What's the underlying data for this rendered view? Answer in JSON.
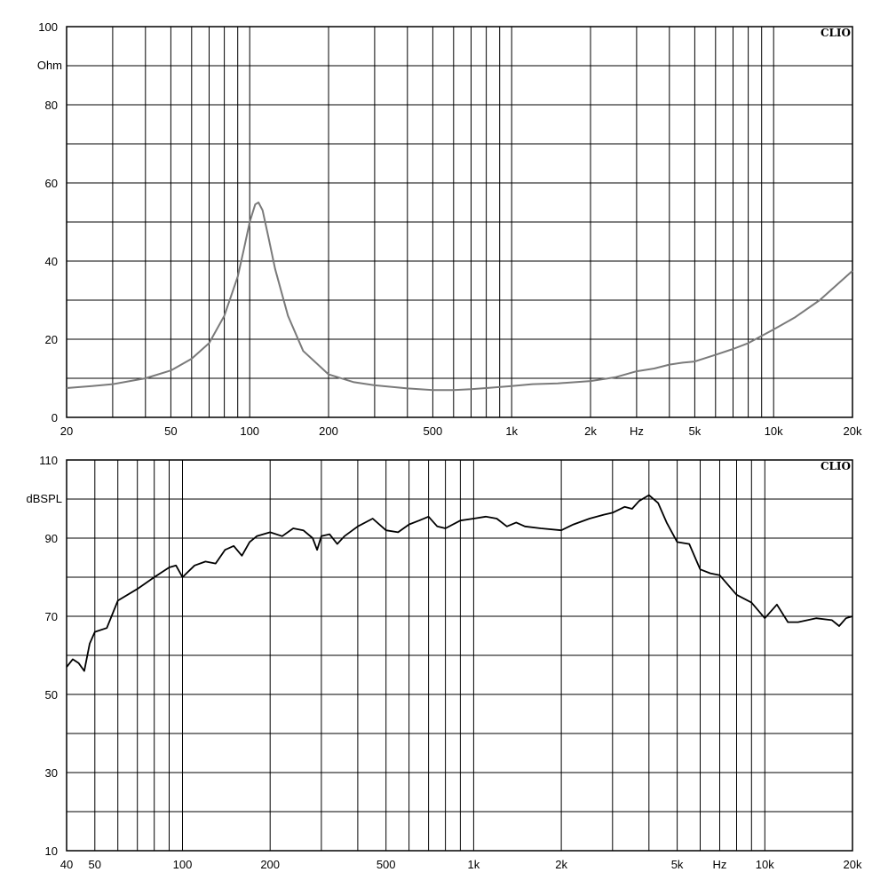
{
  "chart_data": [
    {
      "type": "line",
      "title": "",
      "brand": "CLIO",
      "xlabel": "",
      "ylabel": "Ohm",
      "x_scale": "log",
      "xlim": [
        20,
        20000
      ],
      "ylim": [
        0,
        100
      ],
      "grid": true,
      "x_ticks": [
        {
          "value": 20,
          "label": "20"
        },
        {
          "value": 50,
          "label": "50"
        },
        {
          "value": 100,
          "label": "100"
        },
        {
          "value": 200,
          "label": "200"
        },
        {
          "value": 500,
          "label": "500"
        },
        {
          "value": 1000,
          "label": "1k"
        },
        {
          "value": 2000,
          "label": "2k"
        },
        {
          "value": 3000,
          "label": "Hz"
        },
        {
          "value": 5000,
          "label": "5k"
        },
        {
          "value": 10000,
          "label": "10k"
        },
        {
          "value": 20000,
          "label": "20k"
        }
      ],
      "y_ticks": [
        {
          "value": 0,
          "label": "0"
        },
        {
          "value": 20,
          "label": "20"
        },
        {
          "value": 40,
          "label": "40"
        },
        {
          "value": 60,
          "label": "60"
        },
        {
          "value": 80,
          "label": "80"
        },
        {
          "value": 100,
          "label": "100"
        }
      ],
      "line_color": "#7a7a7a",
      "series": [
        {
          "name": "",
          "x": [
            20,
            25,
            30,
            40,
            50,
            60,
            70,
            80,
            90,
            95,
            100,
            105,
            108,
            112,
            118,
            125,
            140,
            160,
            200,
            250,
            300,
            400,
            500,
            600,
            700,
            800,
            1000,
            1200,
            1500,
            2000,
            2500,
            3000,
            3500,
            4000,
            4500,
            5000,
            6000,
            7000,
            8000,
            10000,
            12000,
            15000,
            20000
          ],
          "y": [
            7.5,
            8.0,
            8.5,
            10.0,
            12.0,
            15.0,
            19.0,
            26.0,
            36.0,
            43.0,
            50.0,
            54.5,
            55.0,
            53.0,
            46.0,
            38.0,
            26.0,
            17.0,
            11.0,
            9.0,
            8.2,
            7.4,
            7.0,
            7.0,
            7.2,
            7.5,
            8.0,
            8.5,
            8.7,
            9.3,
            10.3,
            11.8,
            12.5,
            13.5,
            14.0,
            14.3,
            16.0,
            17.5,
            19.0,
            22.5,
            25.5,
            30.0,
            37.5
          ]
        }
      ]
    },
    {
      "type": "line",
      "title": "",
      "brand": "CLIO",
      "xlabel": "",
      "ylabel": "dBSPL",
      "x_scale": "log",
      "xlim": [
        40,
        20000
      ],
      "ylim": [
        10,
        110
      ],
      "grid": true,
      "x_ticks": [
        {
          "value": 40,
          "label": "40"
        },
        {
          "value": 50,
          "label": "50"
        },
        {
          "value": 100,
          "label": "100"
        },
        {
          "value": 200,
          "label": "200"
        },
        {
          "value": 500,
          "label": "500"
        },
        {
          "value": 1000,
          "label": "1k"
        },
        {
          "value": 2000,
          "label": "2k"
        },
        {
          "value": 5000,
          "label": "5k"
        },
        {
          "value": 7000,
          "label": "Hz"
        },
        {
          "value": 10000,
          "label": "10k"
        },
        {
          "value": 20000,
          "label": "20k"
        }
      ],
      "y_ticks": [
        {
          "value": 10,
          "label": "10"
        },
        {
          "value": 30,
          "label": "30"
        },
        {
          "value": 50,
          "label": "50"
        },
        {
          "value": 70,
          "label": "70"
        },
        {
          "value": 90,
          "label": "90"
        },
        {
          "value": 110,
          "label": "110"
        }
      ],
      "line_color": "#000000",
      "series": [
        {
          "name": "",
          "x": [
            40,
            42,
            44,
            46,
            48,
            50,
            55,
            60,
            70,
            80,
            90,
            95,
            100,
            110,
            120,
            130,
            140,
            150,
            160,
            170,
            180,
            200,
            220,
            240,
            260,
            280,
            290,
            300,
            320,
            340,
            360,
            400,
            450,
            500,
            550,
            600,
            650,
            700,
            750,
            800,
            900,
            1000,
            1100,
            1200,
            1300,
            1400,
            1500,
            1700,
            2000,
            2200,
            2500,
            2800,
            3000,
            3300,
            3500,
            3700,
            4000,
            4300,
            4600,
            5000,
            5500,
            6000,
            6500,
            7000,
            8000,
            9000,
            10000,
            11000,
            12000,
            13000,
            14000,
            15000,
            17000,
            18000,
            19000,
            20000
          ],
          "y": [
            57,
            59,
            58,
            56,
            63,
            66,
            67,
            74,
            77,
            80,
            82.5,
            83,
            80,
            83,
            84,
            83.5,
            87,
            88,
            85.5,
            89,
            90.5,
            91.5,
            90.5,
            92.5,
            92,
            90,
            87,
            90.5,
            91,
            88.5,
            90.5,
            93,
            95,
            92,
            91.5,
            93.5,
            94.5,
            95.5,
            93,
            92.5,
            94.5,
            95,
            95.5,
            95,
            93,
            94,
            93,
            92.5,
            92,
            93.5,
            95,
            96,
            96.5,
            98,
            97.5,
            99.5,
            101,
            99,
            94,
            89,
            88.5,
            82,
            81,
            80.5,
            75.5,
            73.5,
            69.5,
            73,
            68.5,
            68.5,
            69,
            69.5,
            69,
            67.5,
            69.5,
            70
          ]
        }
      ]
    }
  ]
}
